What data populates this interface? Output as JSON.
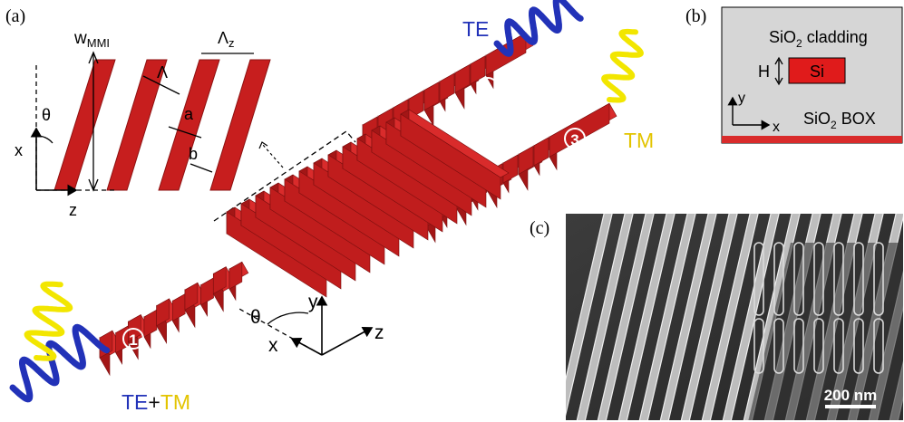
{
  "panel_labels": {
    "a": "(a)",
    "b": "(b)",
    "c": "(c)"
  },
  "inset_a": {
    "w_label": "w",
    "w_sub": "MMI",
    "lambda": "Λ",
    "lambda_z": "Λ",
    "lambda_z_sub": "z",
    "a": "a",
    "b": "b",
    "theta": "θ",
    "x": "x",
    "z": "z"
  },
  "device": {
    "port1": "1",
    "port2": "2",
    "port3": "3",
    "te": "TE",
    "tm": "TM",
    "input_te": "TE",
    "input_plus": "+",
    "input_tm": "TM",
    "axis_x": "x",
    "axis_y": "y",
    "axis_z": "z",
    "axis_theta": "θ"
  },
  "cross_section": {
    "cladding_prefix": "SiO",
    "cladding_sub": "2",
    "cladding_suffix": " cladding",
    "core": "Si",
    "height": "H",
    "box_prefix": "SiO",
    "box_sub": "2",
    "box_suffix": " BOX",
    "axis_x": "x",
    "axis_y": "y"
  },
  "sem": {
    "scale_label": "200 nm"
  },
  "colors": {
    "waveguide_top": "#d92b2b",
    "waveguide_side": "#a31616",
    "waveguide_front": "#c01d1d",
    "te_wave": "#2232b8",
    "tm_wave": "#f2e600",
    "tm_text": "#e3c400",
    "cladding": "#d6d6d6",
    "sem_bg": "#2e2e2e"
  }
}
